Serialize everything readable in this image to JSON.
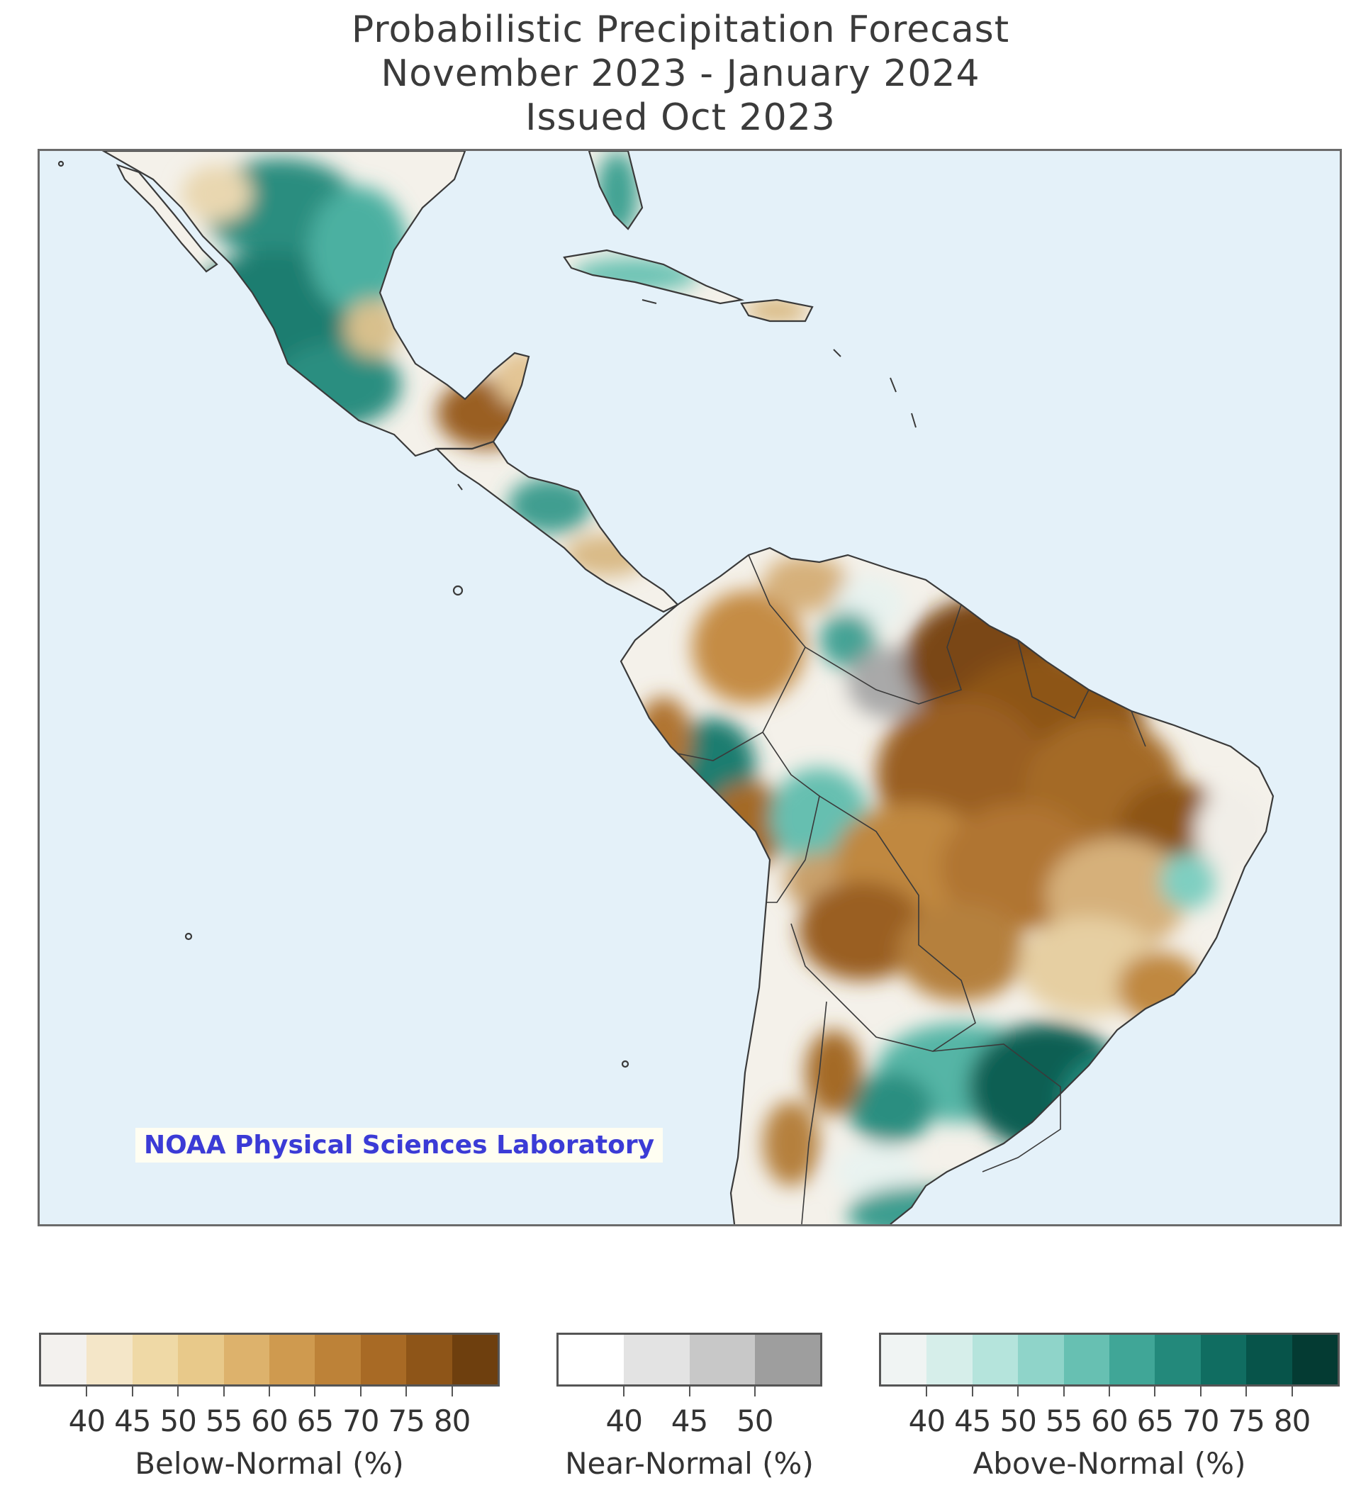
{
  "title": {
    "line1": "Probabilistic Precipitation Forecast",
    "line2": "November 2023 - January 2024",
    "line3": "Issued Oct 2023"
  },
  "credit": "NOAA Physical Sciences Laboratory",
  "colors": {
    "ocean": "#e4f1f9",
    "land_neutral": "#f7f4ee",
    "border": "#3a3a3a"
  },
  "legend": {
    "below": {
      "label": "Below-Normal (%)",
      "ticks": [
        "40",
        "45",
        "50",
        "55",
        "60",
        "65",
        "70",
        "75",
        "80"
      ],
      "colors": [
        "#f3f1ee",
        "#f4e6c8",
        "#efd9a6",
        "#e8c98a",
        "#ddb26c",
        "#cf9a4f",
        "#bd8238",
        "#a86a25",
        "#8e5518",
        "#6e3f0e"
      ]
    },
    "near": {
      "label": "Near-Normal (%)",
      "ticks": [
        "40",
        "45",
        "50"
      ],
      "colors": [
        "#ffffff",
        "#e3e3e3",
        "#c8c8c8",
        "#9e9e9e"
      ]
    },
    "above": {
      "label": "Above-Normal (%)",
      "ticks": [
        "40",
        "45",
        "50",
        "55",
        "60",
        "65",
        "70",
        "75",
        "80"
      ],
      "colors": [
        "#f0f4f3",
        "#d6eeea",
        "#b5e4dc",
        "#8fd4c9",
        "#67c0b2",
        "#40a697",
        "#23897b",
        "#106d61",
        "#07544a",
        "#043b33"
      ]
    }
  }
}
